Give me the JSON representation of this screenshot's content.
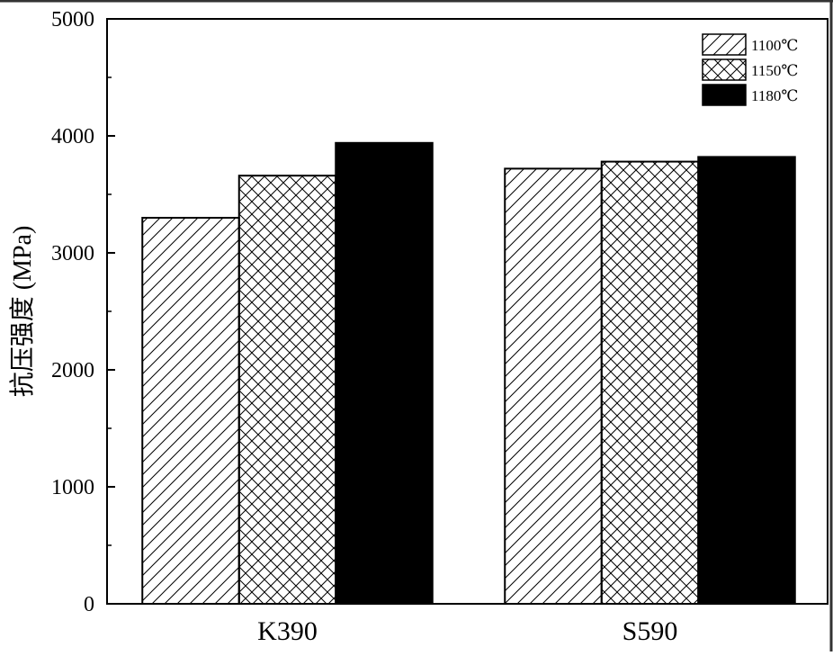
{
  "chart_data": {
    "type": "bar",
    "categories": [
      "K390",
      "S590"
    ],
    "series": [
      {
        "name": "1100℃",
        "values": [
          3300,
          3720
        ],
        "pattern": "diagonal-hatch"
      },
      {
        "name": "1150℃",
        "values": [
          3660,
          3780
        ],
        "pattern": "cross-hatch"
      },
      {
        "name": "1180℃",
        "values": [
          3940,
          3820
        ],
        "pattern": "solid-black"
      }
    ],
    "title": "",
    "xlabel": "",
    "ylabel": "抗压强度 (MPa)",
    "ylim": [
      0,
      5000
    ],
    "yticks": [
      0,
      1000,
      2000,
      3000,
      4000,
      5000
    ],
    "ytick_labels": [
      "0",
      "1000",
      "2000",
      "3000",
      "4000",
      "5000"
    ],
    "grid": false,
    "legend_position": "top-right",
    "colors": {
      "bar_fill_solid": "#000000",
      "hatch": "#000000",
      "background": "#ffffff"
    }
  }
}
